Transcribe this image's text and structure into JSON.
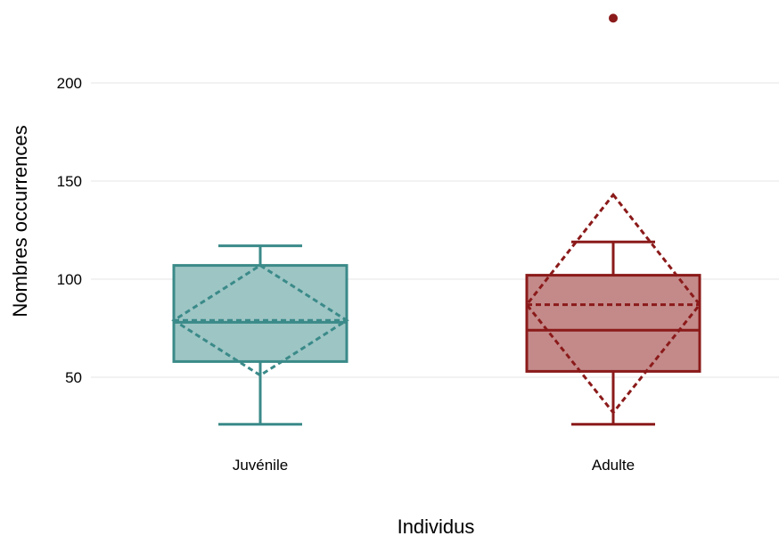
{
  "chart_data": {
    "type": "boxplot",
    "title": "",
    "xlabel": "Individus",
    "ylabel": "Nombres occurrences",
    "ylim": [
      15,
      245
    ],
    "yticks": [
      50,
      100,
      150,
      200
    ],
    "grid": true,
    "legend": "none",
    "categories": [
      "Juvénile",
      "Adulte"
    ],
    "boxes": [
      {
        "category": "Juvénile",
        "color": "#3a8a89",
        "fill": "#9dc5c4",
        "whisker_low": 26,
        "q1": 58,
        "median": 78,
        "q3": 107,
        "whisker_high": 117,
        "mean": 79,
        "mean_ci": [
          51,
          107
        ],
        "outliers": []
      },
      {
        "category": "Adulte",
        "color": "#8b1a1a",
        "fill": "#c48a8a",
        "whisker_low": 26,
        "q1": 53,
        "median": 74,
        "q3": 102,
        "whisker_high": 119,
        "mean": 87,
        "mean_ci": [
          32,
          143
        ],
        "outliers": [
          233
        ]
      }
    ]
  }
}
